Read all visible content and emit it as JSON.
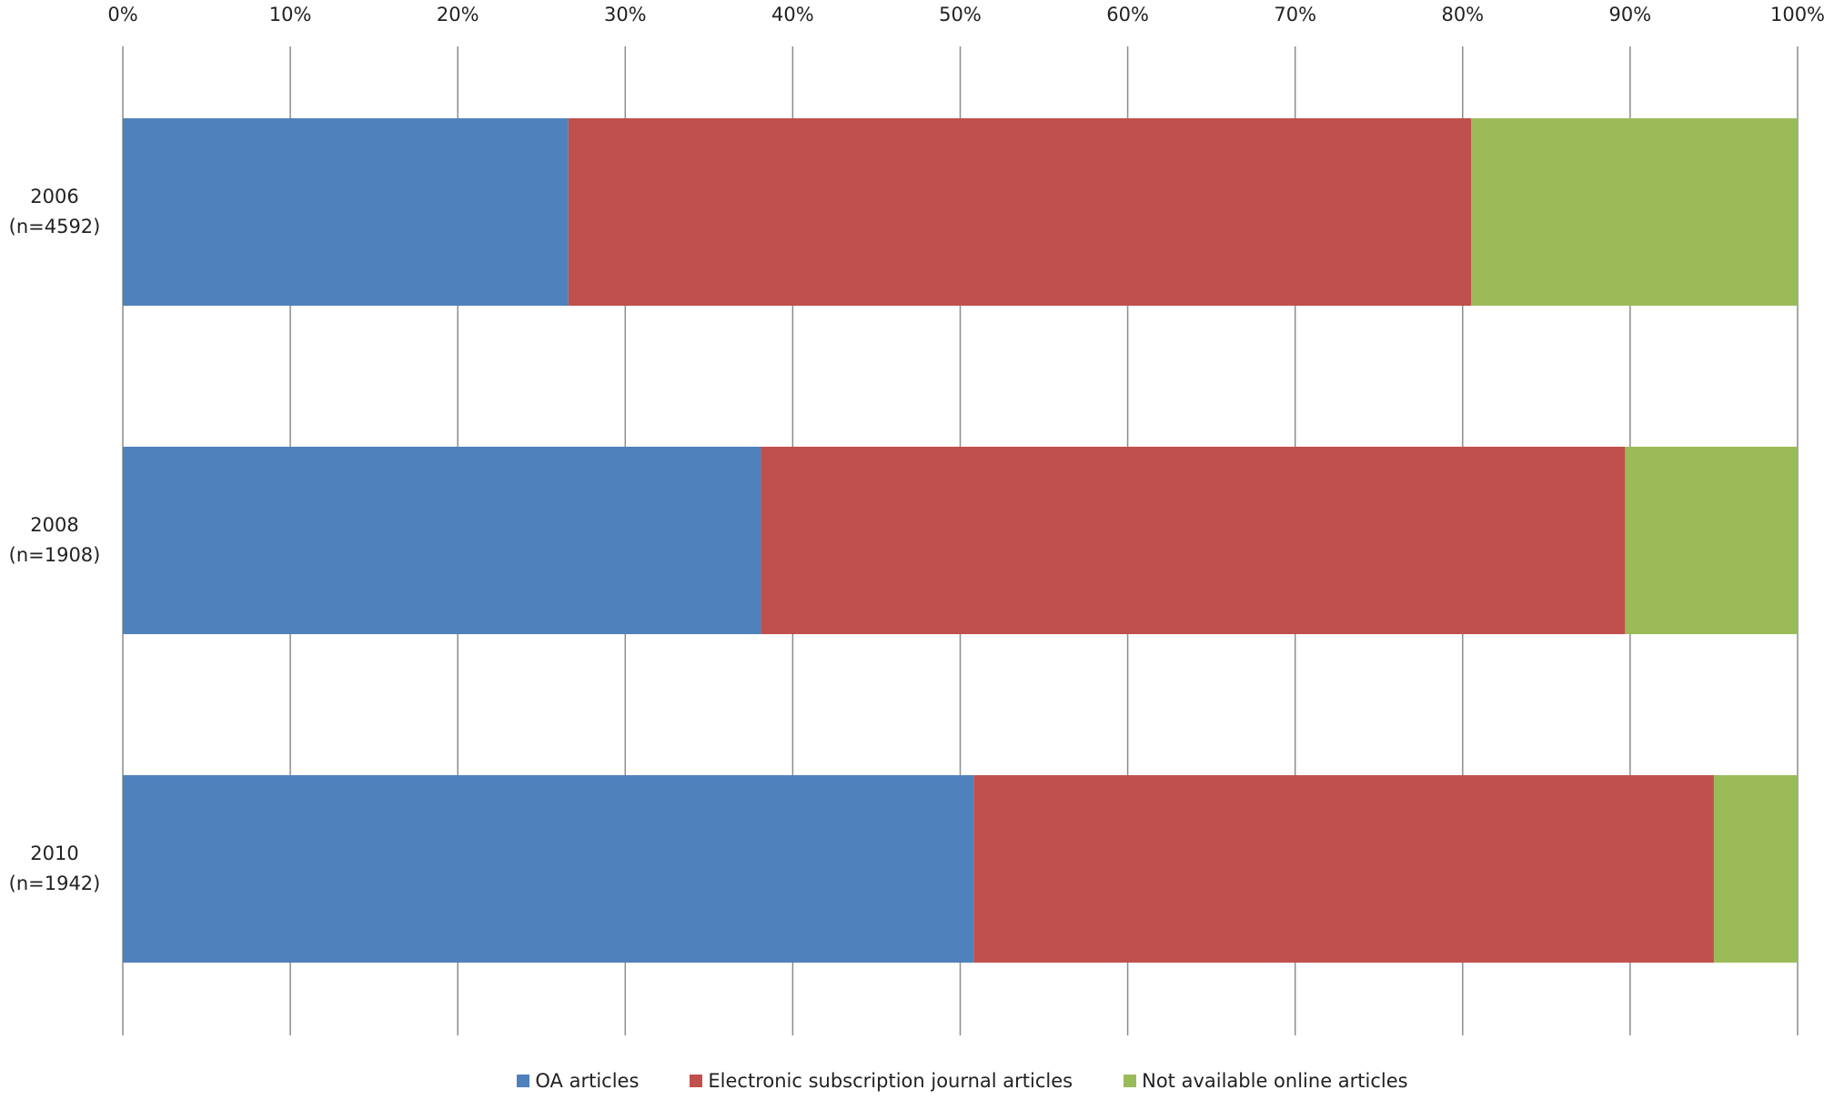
{
  "chart_data": {
    "type": "stacked-bar-horizontal",
    "categories": [
      "2006\n(n=4592)",
      "2008\n(n=1908)",
      "2010\n(n=1942)"
    ],
    "series": [
      {
        "name": "OA articles",
        "color": "#4f81bd",
        "values": [
          26.6,
          38.1,
          50.8
        ]
      },
      {
        "name": "Electronic subscription journal articles",
        "color": "#c0504d",
        "values": [
          53.9,
          51.6,
          44.2
        ]
      },
      {
        "name": "Not available online articles",
        "color": "#9bbb59",
        "values": [
          19.5,
          10.3,
          5.0
        ]
      }
    ],
    "xlim": [
      0,
      100
    ],
    "xticks": [
      {
        "value": 0,
        "label": "0%"
      },
      {
        "value": 10,
        "label": "10%"
      },
      {
        "value": 20,
        "label": "20%"
      },
      {
        "value": 30,
        "label": "30%"
      },
      {
        "value": 40,
        "label": "40%"
      },
      {
        "value": 50,
        "label": "50%"
      },
      {
        "value": 60,
        "label": "60%"
      },
      {
        "value": 70,
        "label": "70%"
      },
      {
        "value": 80,
        "label": "80%"
      },
      {
        "value": 90,
        "label": "90%"
      },
      {
        "value": 100,
        "label": "100%"
      }
    ],
    "grid": true,
    "legend": "bottom"
  }
}
